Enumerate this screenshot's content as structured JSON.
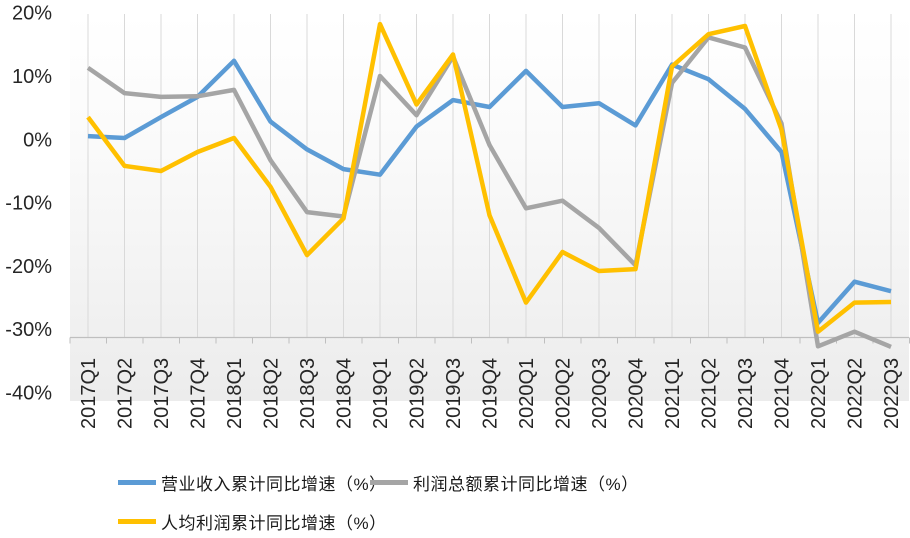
{
  "chart_data": {
    "type": "line",
    "title": "",
    "xlabel": "",
    "ylabel": "",
    "categories": [
      "2017Q1",
      "2017Q2",
      "2017Q3",
      "2017Q4",
      "2018Q1",
      "2018Q2",
      "2018Q3",
      "2018Q4",
      "2019Q1",
      "2019Q2",
      "2019Q3",
      "2019Q4",
      "2020Q1",
      "2020Q2",
      "2020Q3",
      "2020Q4",
      "2021Q1",
      "2021Q2",
      "2021Q3",
      "2021Q4",
      "2022Q1",
      "2022Q2",
      "2022Q3"
    ],
    "series": [
      {
        "id": "revenue",
        "name": "营业收入累计同比增速（%）",
        "color": "#5B9BD5",
        "values": [
          0.5,
          0.2,
          3.5,
          6.7,
          12.4,
          2.8,
          -1.6,
          -4.7,
          -5.6,
          2.0,
          6.2,
          5.1,
          10.8,
          5.1,
          5.7,
          2.2,
          11.8,
          9.5,
          4.8,
          -2.0,
          -29.0,
          -22.5,
          -24.0
        ]
      },
      {
        "id": "profit-total",
        "name": "利润总额累计同比增速（%）",
        "color": "#A5A5A5",
        "values": [
          11.3,
          7.3,
          6.7,
          6.8,
          7.8,
          -3.3,
          -11.5,
          -12.2,
          10.0,
          3.8,
          13.1,
          -0.9,
          -10.9,
          -9.7,
          -14.0,
          -19.9,
          8.9,
          16.1,
          14.5,
          2.5,
          -32.7,
          -30.4,
          -32.8
        ]
      },
      {
        "id": "profit-per-capita",
        "name": "人均利润累计同比增速（%）",
        "color": "#FFC000",
        "values": [
          3.5,
          -4.2,
          -5.0,
          -2.0,
          0.2,
          -7.5,
          -18.3,
          -12.5,
          18.2,
          5.5,
          13.4,
          -12.0,
          -25.8,
          -17.8,
          -20.8,
          -20.5,
          11.5,
          16.6,
          17.9,
          1.5,
          -30.4,
          -25.8,
          -25.7
        ]
      }
    ],
    "y_tick_labels": [
      "20%",
      "10%",
      "0%",
      "-10%",
      "-20%",
      "-30%",
      "-40%"
    ],
    "y_tick_values": [
      20,
      10,
      0,
      -10,
      -20,
      -30,
      -40
    ],
    "ylim": [
      -40,
      20
    ],
    "grid": "vertical-only",
    "legend_position": "bottom-left",
    "colors": {
      "gridline": "#D9D9D9",
      "axis_line": "#BFBFBF",
      "tick_text": "#262626",
      "plot_bg_top": "#FFFFFF",
      "plot_bg_bottom": "#ECECEC"
    }
  }
}
